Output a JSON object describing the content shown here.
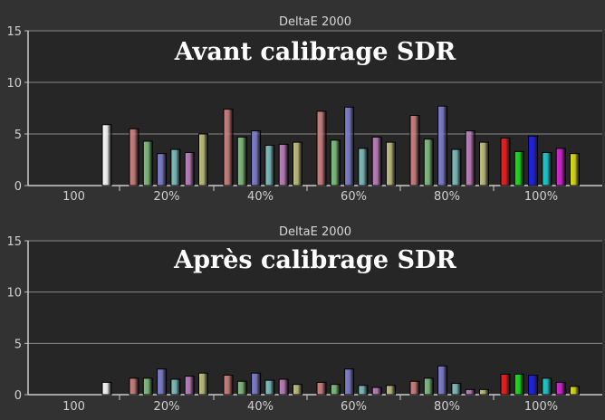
{
  "chart_data": [
    {
      "type": "bar",
      "title": "DeltaE 2000",
      "overlay_title": "Avant calibrage SDR",
      "ylim": [
        0,
        15
      ],
      "yticks": [
        "0",
        "5",
        "10",
        "15"
      ],
      "grid": true,
      "categories": [
        "100",
        "20%",
        "40%",
        "60%",
        "80%",
        "100%"
      ],
      "groups": [
        {
          "label": "100",
          "values": [
            5.9
          ]
        },
        {
          "label": "20%",
          "values": [
            5.5,
            4.3,
            3.1,
            3.5,
            3.2,
            5.0
          ]
        },
        {
          "label": "40%",
          "values": [
            7.4,
            4.7,
            5.3,
            3.9,
            4.0,
            4.2
          ]
        },
        {
          "label": "60%",
          "values": [
            7.2,
            4.4,
            7.6,
            3.6,
            4.7,
            4.2
          ]
        },
        {
          "label": "80%",
          "values": [
            6.8,
            4.5,
            7.7,
            3.5,
            5.3,
            4.2
          ]
        },
        {
          "label": "100%",
          "values": [
            4.6,
            3.3,
            4.8,
            3.2,
            3.6,
            3.1
          ]
        }
      ]
    },
    {
      "type": "bar",
      "title": "DeltaE 2000",
      "overlay_title": "Après calibrage SDR",
      "ylim": [
        0,
        15
      ],
      "yticks": [
        "0",
        "5",
        "10",
        "15"
      ],
      "grid": true,
      "categories": [
        "100",
        "20%",
        "40%",
        "60%",
        "80%",
        "100%"
      ],
      "groups": [
        {
          "label": "100",
          "values": [
            1.2
          ]
        },
        {
          "label": "20%",
          "values": [
            1.6,
            1.6,
            2.5,
            1.5,
            1.8,
            2.1
          ]
        },
        {
          "label": "40%",
          "values": [
            1.9,
            1.3,
            2.1,
            1.4,
            1.5,
            1.0
          ]
        },
        {
          "label": "60%",
          "values": [
            1.2,
            1.0,
            2.5,
            0.9,
            0.7,
            0.9
          ]
        },
        {
          "label": "80%",
          "values": [
            1.3,
            1.6,
            2.8,
            1.1,
            0.5,
            0.5
          ]
        },
        {
          "label": "100%",
          "values": [
            2.0,
            2.0,
            1.9,
            1.6,
            1.2,
            0.8
          ]
        }
      ]
    }
  ],
  "colors": {
    "background": "#323232",
    "plot_area": "#262626",
    "grid": "#8a8a8a",
    "white_bar": "#ffffff",
    "desat_series": [
      "#d08080",
      "#80c080",
      "#8080d0",
      "#80c0c0",
      "#c080c0",
      "#c0c080"
    ],
    "sat_series": [
      "#ee2020",
      "#20dd20",
      "#2020ee",
      "#20cccc",
      "#dd20dd",
      "#dddd20"
    ]
  }
}
